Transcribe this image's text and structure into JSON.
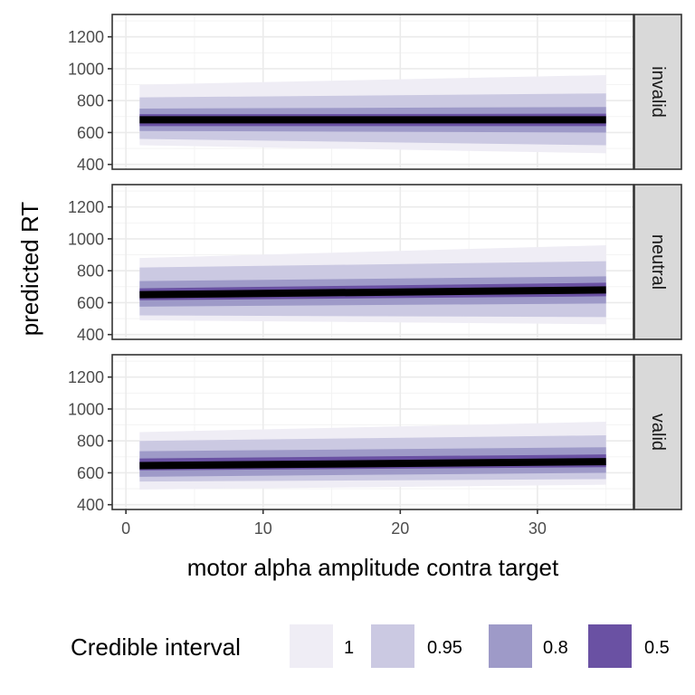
{
  "chart_data": {
    "type": "area",
    "xlabel": "motor alpha amplitude contra target",
    "ylabel": "predicted RT",
    "xlim": [
      -1,
      37
    ],
    "ylim": [
      370,
      1340
    ],
    "x_ticks": [
      0,
      10,
      20,
      30
    ],
    "y_ticks": [
      400,
      600,
      800,
      1000,
      1200
    ],
    "grid": true,
    "x_range": [
      1,
      35
    ],
    "legend": {
      "title": "Credible interval",
      "position": "bottom",
      "entries": [
        {
          "label": "1",
          "color": "#efedf5"
        },
        {
          "label": "0.95",
          "color": "#cbc9e2"
        },
        {
          "label": "0.8",
          "color": "#9e9ac8"
        },
        {
          "label": "0.5",
          "color": "#6a51a3"
        }
      ]
    },
    "median_color": "#000000",
    "panels": [
      {
        "label": "invalid",
        "median": [
          680,
          680
        ],
        "intervals": {
          "1": [
            [
              520,
              900
            ],
            [
              470,
              960
            ]
          ],
          "0.95": [
            [
              560,
              820
            ],
            [
              520,
              845
            ]
          ],
          "0.8": [
            [
              610,
              750
            ],
            [
              600,
              760
            ]
          ],
          "0.5": [
            [
              640,
              715
            ],
            [
              640,
              718
            ]
          ]
        }
      },
      {
        "label": "neutral",
        "median": [
          650,
          680
        ],
        "intervals": {
          "1": [
            [
              490,
              880
            ],
            [
              465,
              960
            ]
          ],
          "0.95": [
            [
              520,
              820
            ],
            [
              510,
              860
            ]
          ],
          "0.8": [
            [
              575,
              735
            ],
            [
              595,
              765
            ]
          ],
          "0.5": [
            [
              615,
              690
            ],
            [
              640,
              725
            ]
          ]
        }
      },
      {
        "label": "valid",
        "median": [
          645,
          670
        ],
        "intervals": {
          "1": [
            [
              495,
              855
            ],
            [
              525,
              920
            ]
          ],
          "0.95": [
            [
              545,
              800
            ],
            [
              560,
              835
            ]
          ],
          "0.8": [
            [
              575,
              735
            ],
            [
              600,
              760
            ]
          ],
          "0.5": [
            [
              615,
              690
            ],
            [
              635,
              715
            ]
          ]
        }
      }
    ]
  }
}
